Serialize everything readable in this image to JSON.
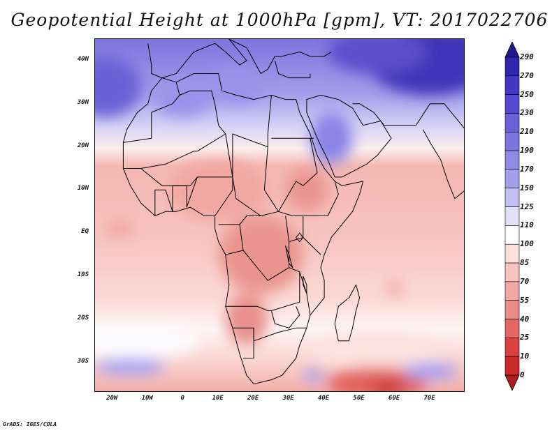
{
  "title": "Geopotential Height at 1000hPa [gpm], VT: 2017022706",
  "credit": "GrADS: IGES/COLA",
  "map": {
    "lon_range": [
      -25,
      80
    ],
    "lat_range": [
      -37,
      45
    ],
    "lat_labels": [
      {
        "lat": 40,
        "text": "40N"
      },
      {
        "lat": 30,
        "text": "30N"
      },
      {
        "lat": 20,
        "text": "20N"
      },
      {
        "lat": 10,
        "text": "10N"
      },
      {
        "lat": 0,
        "text": "EQ"
      },
      {
        "lat": -10,
        "text": "10S"
      },
      {
        "lat": -20,
        "text": "20S"
      },
      {
        "lat": -30,
        "text": "30S"
      }
    ],
    "lon_labels": [
      {
        "lon": -20,
        "text": "20W"
      },
      {
        "lon": -10,
        "text": "10W"
      },
      {
        "lon": 0,
        "text": "0"
      },
      {
        "lon": 10,
        "text": "10E"
      },
      {
        "lon": 20,
        "text": "20E"
      },
      {
        "lon": 30,
        "text": "30E"
      },
      {
        "lon": 40,
        "text": "40E"
      },
      {
        "lon": 50,
        "text": "50E"
      },
      {
        "lon": 60,
        "text": "60E"
      },
      {
        "lon": 70,
        "text": "70E"
      }
    ],
    "coastline": [
      [
        -17,
        21
      ],
      [
        -16,
        24
      ],
      [
        -13,
        28
      ],
      [
        -10,
        30
      ],
      [
        -9,
        33
      ],
      [
        -6,
        36
      ],
      [
        -2,
        35
      ],
      [
        3,
        37
      ],
      [
        10,
        37
      ],
      [
        11,
        33
      ],
      [
        15,
        32
      ],
      [
        20,
        31
      ],
      [
        25,
        32
      ],
      [
        29,
        31
      ],
      [
        32,
        31
      ],
      [
        33,
        28
      ],
      [
        36,
        23
      ],
      [
        38,
        18
      ],
      [
        40,
        15
      ],
      [
        43,
        12
      ],
      [
        45,
        11
      ],
      [
        51,
        12
      ],
      [
        50,
        9
      ],
      [
        48,
        5
      ],
      [
        45,
        2
      ],
      [
        42,
        -1
      ],
      [
        40,
        -5
      ],
      [
        39,
        -8
      ],
      [
        40,
        -11
      ],
      [
        40,
        -15
      ],
      [
        36,
        -19
      ],
      [
        35,
        -22
      ],
      [
        33,
        -26
      ],
      [
        32,
        -29
      ],
      [
        28,
        -33
      ],
      [
        25,
        -34
      ],
      [
        20,
        -35
      ],
      [
        18,
        -33
      ],
      [
        16,
        -28
      ],
      [
        14,
        -22
      ],
      [
        12,
        -17
      ],
      [
        13,
        -12
      ],
      [
        12,
        -5
      ],
      [
        10,
        -2
      ],
      [
        9,
        1
      ],
      [
        9,
        4
      ],
      [
        6,
        4
      ],
      [
        2,
        6
      ],
      [
        -2,
        5
      ],
      [
        -5,
        5
      ],
      [
        -8,
        4
      ],
      [
        -12,
        7
      ],
      [
        -15,
        11
      ],
      [
        -17,
        15
      ],
      [
        -17,
        21
      ]
    ],
    "madagascar": [
      [
        49,
        -12
      ],
      [
        50,
        -15
      ],
      [
        49,
        -18
      ],
      [
        48,
        -22
      ],
      [
        47,
        -25
      ],
      [
        44,
        -25
      ],
      [
        43,
        -21
      ],
      [
        44,
        -17
      ],
      [
        47,
        -15
      ],
      [
        49,
        -12
      ]
    ],
    "arabia": [
      [
        35,
        28
      ],
      [
        38,
        22
      ],
      [
        41,
        17
      ],
      [
        43,
        13
      ],
      [
        45,
        13
      ],
      [
        52,
        16
      ],
      [
        55,
        18
      ],
      [
        59,
        22
      ],
      [
        56,
        26
      ],
      [
        51,
        25
      ],
      [
        48,
        29
      ],
      [
        44,
        31
      ],
      [
        39,
        32
      ],
      [
        35,
        31
      ],
      [
        35,
        28
      ]
    ],
    "india": [
      [
        68,
        24
      ],
      [
        70,
        21
      ],
      [
        73,
        17
      ],
      [
        75,
        12
      ],
      [
        77,
        8
      ],
      [
        80,
        10
      ],
      [
        80,
        15
      ],
      [
        80,
        20
      ],
      [
        80,
        24
      ],
      [
        74,
        30
      ],
      [
        70,
        30
      ],
      [
        66,
        25
      ],
      [
        62,
        25
      ],
      [
        57,
        25
      ],
      [
        54,
        28
      ],
      [
        50,
        30
      ],
      [
        48,
        30
      ]
    ],
    "europe": [
      [
        -10,
        44
      ],
      [
        -9,
        39
      ],
      [
        -9,
        37
      ],
      [
        -6,
        36
      ],
      [
        -2,
        37
      ],
      [
        0,
        39
      ],
      [
        3,
        42
      ],
      [
        6,
        43
      ],
      [
        9,
        44
      ],
      [
        12,
        42
      ],
      [
        16,
        39
      ],
      [
        18,
        40
      ],
      [
        15,
        43
      ],
      [
        13,
        45
      ],
      [
        18,
        43
      ],
      [
        20,
        40
      ],
      [
        22,
        37
      ],
      [
        24,
        38
      ],
      [
        26,
        41
      ],
      [
        28,
        41
      ],
      [
        33,
        42
      ],
      [
        36,
        41
      ],
      [
        40,
        41
      ],
      [
        42,
        42
      ]
    ],
    "turkey_south": [
      [
        26,
        40
      ],
      [
        27,
        37
      ],
      [
        30,
        36
      ],
      [
        33,
        36
      ],
      [
        36,
        36
      ],
      [
        36,
        37
      ]
    ],
    "borders": [
      [
        [
          -9,
          28
        ],
        [
          -3,
          30
        ],
        [
          -1,
          32
        ],
        [
          -2,
          35
        ]
      ],
      [
        [
          -1,
          32
        ],
        [
          2,
          33
        ],
        [
          8,
          33
        ],
        [
          9,
          30
        ],
        [
          10,
          25
        ],
        [
          12,
          23
        ],
        [
          4,
          19
        ],
        [
          3,
          19
        ],
        [
          -5,
          16
        ],
        [
          -12,
          15
        ],
        [
          -17,
          15
        ]
      ],
      [
        [
          -9,
          28
        ],
        [
          -9,
          22
        ],
        [
          -17,
          21
        ]
      ],
      [
        [
          -12,
          15
        ],
        [
          -6,
          11
        ],
        [
          2,
          11
        ],
        [
          4,
          13
        ],
        [
          14,
          13
        ],
        [
          14,
          23
        ],
        [
          24,
          20
        ],
        [
          24,
          23
        ],
        [
          25,
          32
        ]
      ],
      [
        [
          12,
          23
        ],
        [
          15,
          8
        ],
        [
          22,
          4
        ],
        [
          27,
          5
        ],
        [
          31,
          4
        ],
        [
          35,
          4
        ],
        [
          41,
          4
        ],
        [
          44,
          9
        ],
        [
          43,
          12
        ]
      ],
      [
        [
          25,
          22
        ],
        [
          37,
          22
        ]
      ],
      [
        [
          24,
          20
        ],
        [
          23,
          10
        ],
        [
          27,
          5
        ],
        [
          32,
          12
        ],
        [
          34,
          11
        ],
        [
          38,
          14
        ],
        [
          36,
          22
        ]
      ],
      [
        [
          -8,
          4
        ],
        [
          -8,
          10
        ],
        [
          -5,
          10
        ],
        [
          -3,
          5
        ]
      ],
      [
        [
          -3,
          5
        ],
        [
          -3,
          11
        ],
        [
          1,
          11
        ],
        [
          1,
          6
        ]
      ],
      [
        [
          1,
          6
        ],
        [
          4,
          13
        ]
      ],
      [
        [
          9,
          4
        ],
        [
          14,
          10
        ],
        [
          14,
          13
        ]
      ],
      [
        [
          10,
          2
        ],
        [
          16,
          2
        ],
        [
          18,
          4
        ],
        [
          22,
          4
        ]
      ],
      [
        [
          16,
          2
        ],
        [
          17,
          -4
        ],
        [
          12,
          -5
        ]
      ],
      [
        [
          17,
          -4
        ],
        [
          20,
          -7
        ],
        [
          24,
          -11
        ],
        [
          30,
          -8
        ],
        [
          30,
          -2
        ],
        [
          29,
          4
        ]
      ],
      [
        [
          12,
          -17
        ],
        [
          21,
          -17
        ],
        [
          24,
          -18
        ],
        [
          25,
          -18
        ],
        [
          33,
          -16
        ],
        [
          33,
          -9
        ],
        [
          30,
          -8
        ]
      ],
      [
        [
          14,
          -22
        ],
        [
          20,
          -22
        ],
        [
          20,
          -25
        ],
        [
          27,
          -23
        ],
        [
          32,
          -22
        ],
        [
          35,
          -22
        ]
      ],
      [
        [
          25,
          -18
        ],
        [
          26,
          -21
        ],
        [
          30,
          -22
        ],
        [
          33,
          -19
        ],
        [
          32,
          -17
        ]
      ],
      [
        [
          20,
          -22
        ],
        [
          20,
          -29
        ],
        [
          17,
          -29
        ]
      ],
      [
        [
          30,
          -2
        ],
        [
          34,
          -1
        ],
        [
          39,
          -5
        ]
      ],
      [
        [
          34,
          -1
        ],
        [
          34,
          4
        ],
        [
          41,
          4
        ]
      ],
      [
        [
          33,
          -9
        ],
        [
          35,
          -14
        ],
        [
          36,
          -19
        ]
      ]
    ],
    "lakes": [
      [
        [
          32,
          -1
        ],
        [
          33,
          0
        ],
        [
          34,
          -1
        ],
        [
          33,
          -2
        ],
        [
          32,
          -1
        ]
      ],
      [
        [
          29,
          -3
        ],
        [
          30,
          -5
        ],
        [
          31,
          -8
        ],
        [
          30,
          -7
        ],
        [
          29,
          -3
        ]
      ],
      [
        [
          34,
          -10
        ],
        [
          35,
          -12
        ],
        [
          35,
          -14
        ],
        [
          34,
          -12
        ],
        [
          34,
          -10
        ]
      ]
    ]
  },
  "contours": [
    {
      "lon": -22,
      "lat": 34,
      "rx": 10,
      "ry": 7,
      "color": "#6960d6"
    },
    {
      "lon": 70,
      "lat": 40,
      "rx": 18,
      "ry": 8,
      "color": "#4035b8"
    },
    {
      "lon": 55,
      "lat": 42,
      "rx": 14,
      "ry": 5,
      "color": "#5b50cc"
    },
    {
      "lon": 42,
      "lat": 22,
      "rx": 6,
      "ry": 6,
      "color": "#8b83e6"
    },
    {
      "lon": 0,
      "lat": 31,
      "rx": 8,
      "ry": 4,
      "color": "#9a93ea"
    },
    {
      "lon": 15,
      "lat": 34,
      "rx": 8,
      "ry": 4,
      "color": "#9a93ea"
    },
    {
      "lon": 10,
      "lat": 10,
      "rx": 14,
      "ry": 7,
      "color": "#f1a7a2"
    },
    {
      "lon": 22,
      "lat": -5,
      "rx": 12,
      "ry": 9,
      "color": "#ea948f"
    },
    {
      "lon": 18,
      "lat": -20,
      "rx": 6,
      "ry": 6,
      "color": "#e8908c"
    },
    {
      "lon": 35,
      "lat": 10,
      "rx": 6,
      "ry": 5,
      "color": "#ea948f"
    },
    {
      "lon": 60,
      "lat": -13,
      "rx": 2,
      "ry": 2,
      "color": "#f1a7a2"
    },
    {
      "lon": -18,
      "lat": 1,
      "rx": 4,
      "ry": 2,
      "color": "#f1a7a2"
    },
    {
      "lon": 55,
      "lat": -35,
      "rx": 14,
      "ry": 4,
      "color": "#e36560"
    },
    {
      "lon": 58,
      "lat": -36,
      "rx": 5,
      "ry": 1.5,
      "color": "#c72a29"
    },
    {
      "lon": -15,
      "lat": -31,
      "rx": 10,
      "ry": 2,
      "color": "#a79ff0"
    },
    {
      "lon": 70,
      "lat": -32,
      "rx": 8,
      "ry": 2,
      "color": "#a79ff0"
    },
    {
      "lon": 37,
      "lat": -33,
      "rx": 3,
      "ry": 1.5,
      "color": "#a79ff0"
    },
    {
      "lon": -15,
      "lat": -25,
      "rx": 20,
      "ry": 4,
      "color": "#fcfcff"
    },
    {
      "lon": 55,
      "lat": -27,
      "rx": 20,
      "ry": 4,
      "color": "#fde2df"
    }
  ],
  "colorbar": {
    "levels": [
      "290",
      "270",
      "250",
      "230",
      "210",
      "190",
      "170",
      "150",
      "125",
      "110",
      "100",
      "85",
      "70",
      "55",
      "40",
      "25",
      "10",
      "0"
    ],
    "colors": [
      "#22178f",
      "#3025ad",
      "#4337c4",
      "#5549d0",
      "#6a60d9",
      "#7d74e0",
      "#9189e6",
      "#a59feb",
      "#c4c0f3",
      "#e2e0f9",
      "#ffffff",
      "#fde0dd",
      "#f8c4c0",
      "#f1a7a2",
      "#ea8c88",
      "#e46763",
      "#dc403f",
      "#c92929",
      "#ad1d1d"
    ]
  }
}
